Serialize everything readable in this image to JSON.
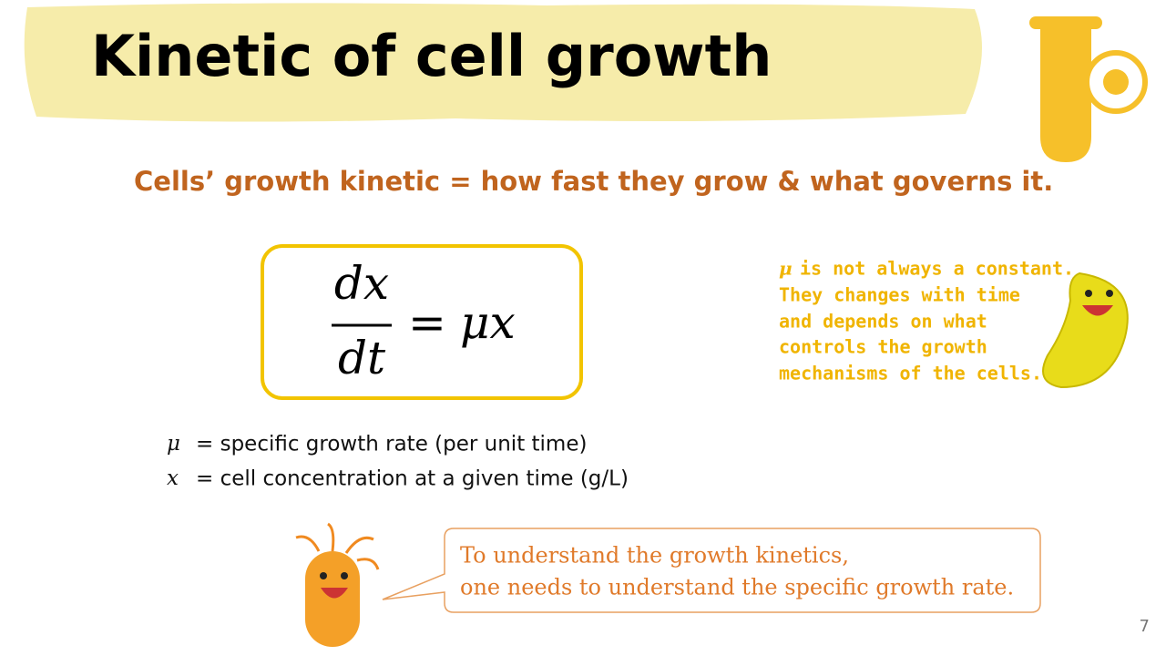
{
  "header": {
    "title": "Kinetic of cell growth"
  },
  "subtitle": "Cells’ growth kinetic = how fast they grow & what governs it.",
  "equation": {
    "numerator": "dx",
    "denominator": "dt",
    "equals": "=",
    "rhs": "μx"
  },
  "definitions": [
    {
      "symbol": "μ",
      "text": "= specific growth rate (per unit time)"
    },
    {
      "symbol": "x",
      "text": "= cell concentration at a given time (g/L)"
    }
  ],
  "note": {
    "symbol": "μ",
    "lines": [
      "is not always a constant.",
      "They changes with time",
      "and depends on what",
      "controls the growth",
      "mechanisms of the cells."
    ]
  },
  "callout": {
    "lines": [
      "To understand the growth kinetics,",
      "one needs to understand the specific growth rate."
    ]
  },
  "page_number": 7
}
